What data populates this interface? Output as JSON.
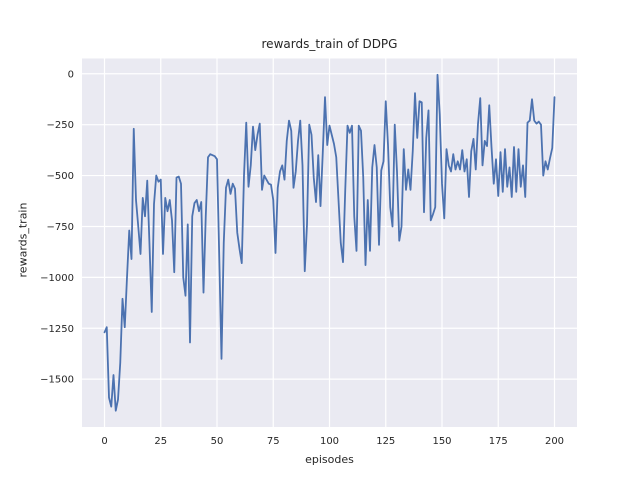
{
  "title": "rewards_train of DDPG",
  "xlabel": "episodes",
  "ylabel": "rewards_train",
  "colors": {
    "figure_bg": "#ffffff",
    "axes_bg": "#eaeaf2",
    "grid": "#ffffff",
    "line": "#4c72b0",
    "text": "#262626"
  },
  "chart_data": {
    "type": "line",
    "title": "rewards_train of DDPG",
    "xlabel": "episodes",
    "ylabel": "rewards_train",
    "grid": true,
    "legend": false,
    "xlim": [
      -10,
      210
    ],
    "ylim": [
      -1735,
      75
    ],
    "x_ticks": [
      0,
      25,
      50,
      75,
      100,
      125,
      150,
      175,
      200
    ],
    "x_tick_labels": [
      "0",
      "25",
      "50",
      "75",
      "100",
      "125",
      "150",
      "175",
      "200"
    ],
    "y_ticks": [
      0,
      -250,
      -500,
      -750,
      -1000,
      -1250,
      -1500
    ],
    "y_tick_labels": [
      "0",
      "−250",
      "−500",
      "−750",
      "−1000",
      "−1250",
      "−1500"
    ],
    "series": [
      {
        "name": "rewards_train",
        "color": "#4c72b0",
        "x_start": 0,
        "x_step": 1,
        "values": [
          -1270,
          -1245,
          -1590,
          -1635,
          -1480,
          -1655,
          -1600,
          -1420,
          -1105,
          -1245,
          -1000,
          -770,
          -910,
          -270,
          -620,
          -750,
          -885,
          -610,
          -700,
          -525,
          -840,
          -1170,
          -640,
          -500,
          -530,
          -520,
          -885,
          -610,
          -675,
          -620,
          -720,
          -975,
          -510,
          -505,
          -540,
          -1000,
          -1090,
          -740,
          -1320,
          -700,
          -635,
          -620,
          -675,
          -630,
          -1075,
          -700,
          -410,
          -395,
          -400,
          -405,
          -420,
          -900,
          -1400,
          -830,
          -560,
          -520,
          -590,
          -540,
          -565,
          -780,
          -860,
          -930,
          -500,
          -240,
          -555,
          -450,
          -260,
          -375,
          -300,
          -245,
          -570,
          -500,
          -520,
          -540,
          -545,
          -620,
          -880,
          -560,
          -480,
          -450,
          -520,
          -330,
          -230,
          -280,
          -560,
          -480,
          -330,
          -230,
          -450,
          -970,
          -740,
          -250,
          -300,
          -510,
          -630,
          -400,
          -650,
          -390,
          -115,
          -350,
          -255,
          -300,
          -345,
          -410,
          -620,
          -830,
          -925,
          -570,
          -255,
          -290,
          -255,
          -700,
          -870,
          -255,
          -280,
          -510,
          -940,
          -620,
          -870,
          -460,
          -350,
          -460,
          -840,
          -475,
          -430,
          -135,
          -350,
          -655,
          -750,
          -250,
          -480,
          -820,
          -750,
          -370,
          -570,
          -470,
          -570,
          -380,
          -95,
          -315,
          -135,
          -140,
          -680,
          -315,
          -180,
          -720,
          -690,
          -655,
          -5,
          -200,
          -540,
          -710,
          -370,
          -450,
          -480,
          -395,
          -470,
          -430,
          -470,
          -375,
          -480,
          -420,
          -605,
          -380,
          -320,
          -470,
          -245,
          -120,
          -450,
          -330,
          -355,
          -155,
          -360,
          -540,
          -420,
          -600,
          -385,
          -580,
          -370,
          -555,
          -460,
          -605,
          -360,
          -580,
          -370,
          -555,
          -450,
          -605,
          -240,
          -230,
          -125,
          -230,
          -245,
          -235,
          -250,
          -500,
          -430,
          -470,
          -415,
          -365,
          -115
        ]
      }
    ]
  }
}
